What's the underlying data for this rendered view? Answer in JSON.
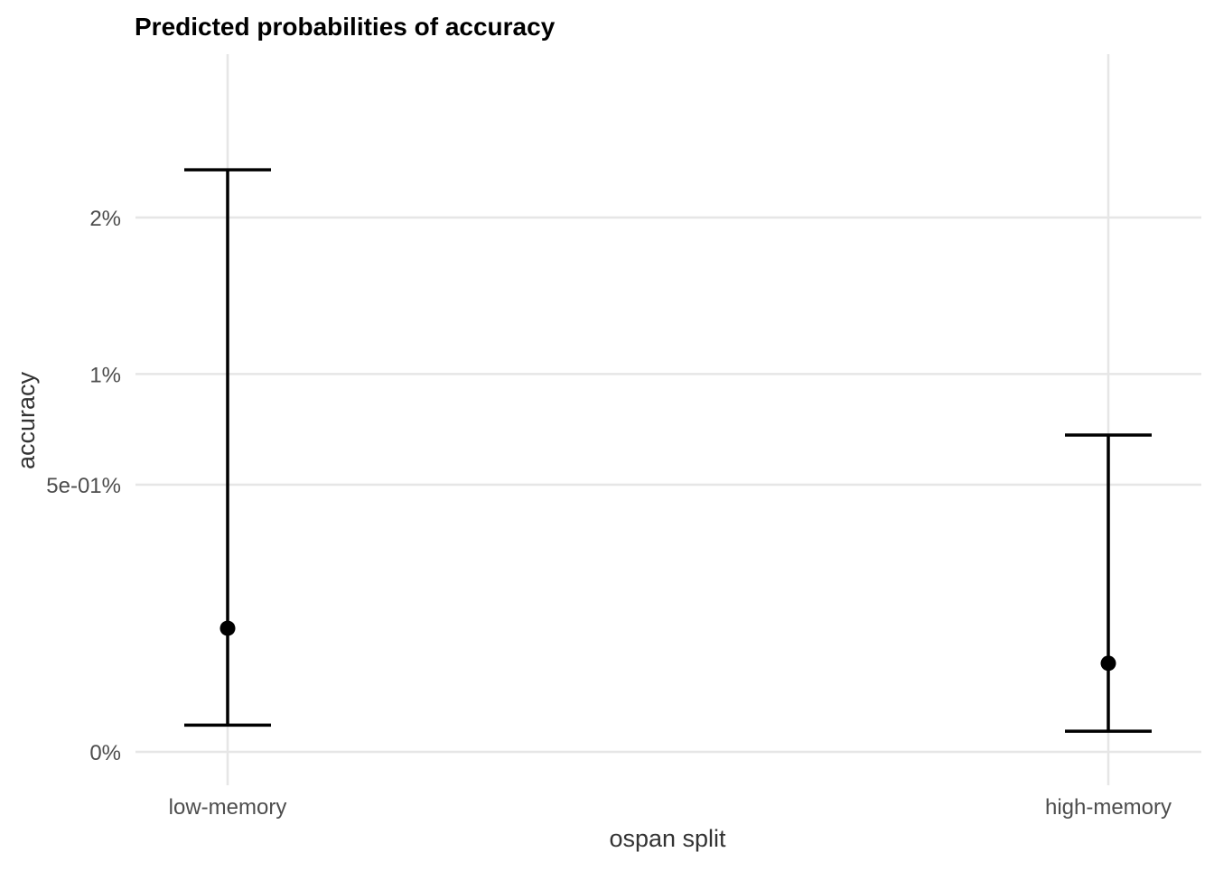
{
  "chart_data": {
    "type": "errorbar",
    "title": "Predicted probabilities of accuracy",
    "xlabel": "ospan split",
    "ylabel": "accuracy",
    "categories": [
      "low-memory",
      "high-memory"
    ],
    "points": [
      {
        "category": "low-memory",
        "estimate": 0.00107,
        "lower": 5e-05,
        "upper": 0.02373
      },
      {
        "category": "high-memory",
        "estimate": 0.00055,
        "lower": 3e-05,
        "upper": 0.00703
      }
    ],
    "yticks": [
      {
        "value": 0.0,
        "label": "0%"
      },
      {
        "value": 0.005,
        "label": "5e-01%"
      },
      {
        "value": 0.01,
        "label": "1%"
      },
      {
        "value": 0.02,
        "label": "2%"
      }
    ],
    "y_scale": "sqrt",
    "ylim": [
      0,
      0.0283
    ],
    "grid": true,
    "legend": "none",
    "colors": {
      "marks": "#000000",
      "grid": "#e6e6e6"
    }
  }
}
